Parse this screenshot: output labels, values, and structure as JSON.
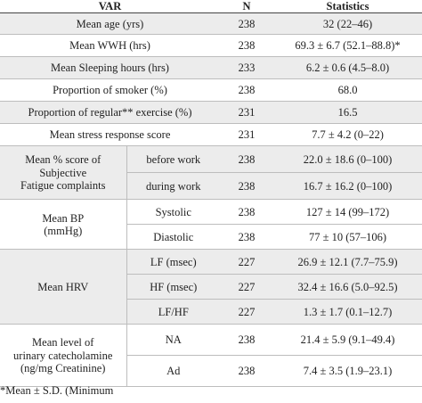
{
  "headers": {
    "var": "VAR",
    "n": "N",
    "stats": "Statistics"
  },
  "rows": {
    "age": {
      "label": "Mean age (yrs)",
      "n": "238",
      "stat": "32 (22–46)"
    },
    "wwh": {
      "label": "Mean WWH (hrs)",
      "n": "238",
      "stat": "69.3 ± 6.7 (52.1–88.8)*"
    },
    "sleep": {
      "label": "Mean Sleeping hours (hrs)",
      "n": "233",
      "stat": "6.2 ± 0.6 (4.5–8.0)"
    },
    "smoker": {
      "label": "Proportion of smoker (%)",
      "n": "238",
      "stat": "68.0"
    },
    "exercise": {
      "label": "Proportion of regular** exercise (%)",
      "n": "231",
      "stat": "16.5"
    },
    "stress": {
      "label": "Mean stress response score",
      "n": "231",
      "stat": "7.7 ± 4.2 (0–22)"
    },
    "fatigue": {
      "label_line1": "Mean % score of Subjective",
      "label_line2": "Fatigue complaints",
      "before": {
        "label": "before work",
        "n": "238",
        "stat": "22.0 ± 18.6 (0–100)"
      },
      "during": {
        "label": "during work",
        "n": "238",
        "stat": "16.7 ± 16.2 (0–100)"
      }
    },
    "bp": {
      "label_line1": "Mean BP",
      "label_line2": "(mmHg)",
      "systolic": {
        "label": "Systolic",
        "n": "238",
        "stat": "127 ± 14 (99–172)"
      },
      "diastolic": {
        "label": "Diastolic",
        "n": "238",
        "stat": "77 ± 10 (57–106)"
      }
    },
    "hrv": {
      "label": "Mean HRV",
      "lf": {
        "label": "LF (msec)",
        "n": "227",
        "stat": "26.9 ± 12.1 (7.7–75.9)"
      },
      "hf": {
        "label": "HF (msec)",
        "n": "227",
        "stat": "32.4 ± 16.6 (5.0–92.5)"
      },
      "lfhf": {
        "label": "LF/HF",
        "n": "227",
        "stat": "1.3 ± 1.7 (0.1–12.7)"
      }
    },
    "catecholamine": {
      "label_line1": "Mean level of",
      "label_line2": "urinary catecholamine",
      "label_line3": "(ng/mg Creatinine)",
      "na": {
        "label": "NA",
        "n": "238",
        "stat": "21.4 ± 5.9 (9.1–49.4)"
      },
      "ad": {
        "label": "Ad",
        "n": "238",
        "stat": "7.4 ± 3.5 (1.9–23.1)"
      }
    }
  },
  "footnote": "*Mean ± S.D. (Minimum"
}
